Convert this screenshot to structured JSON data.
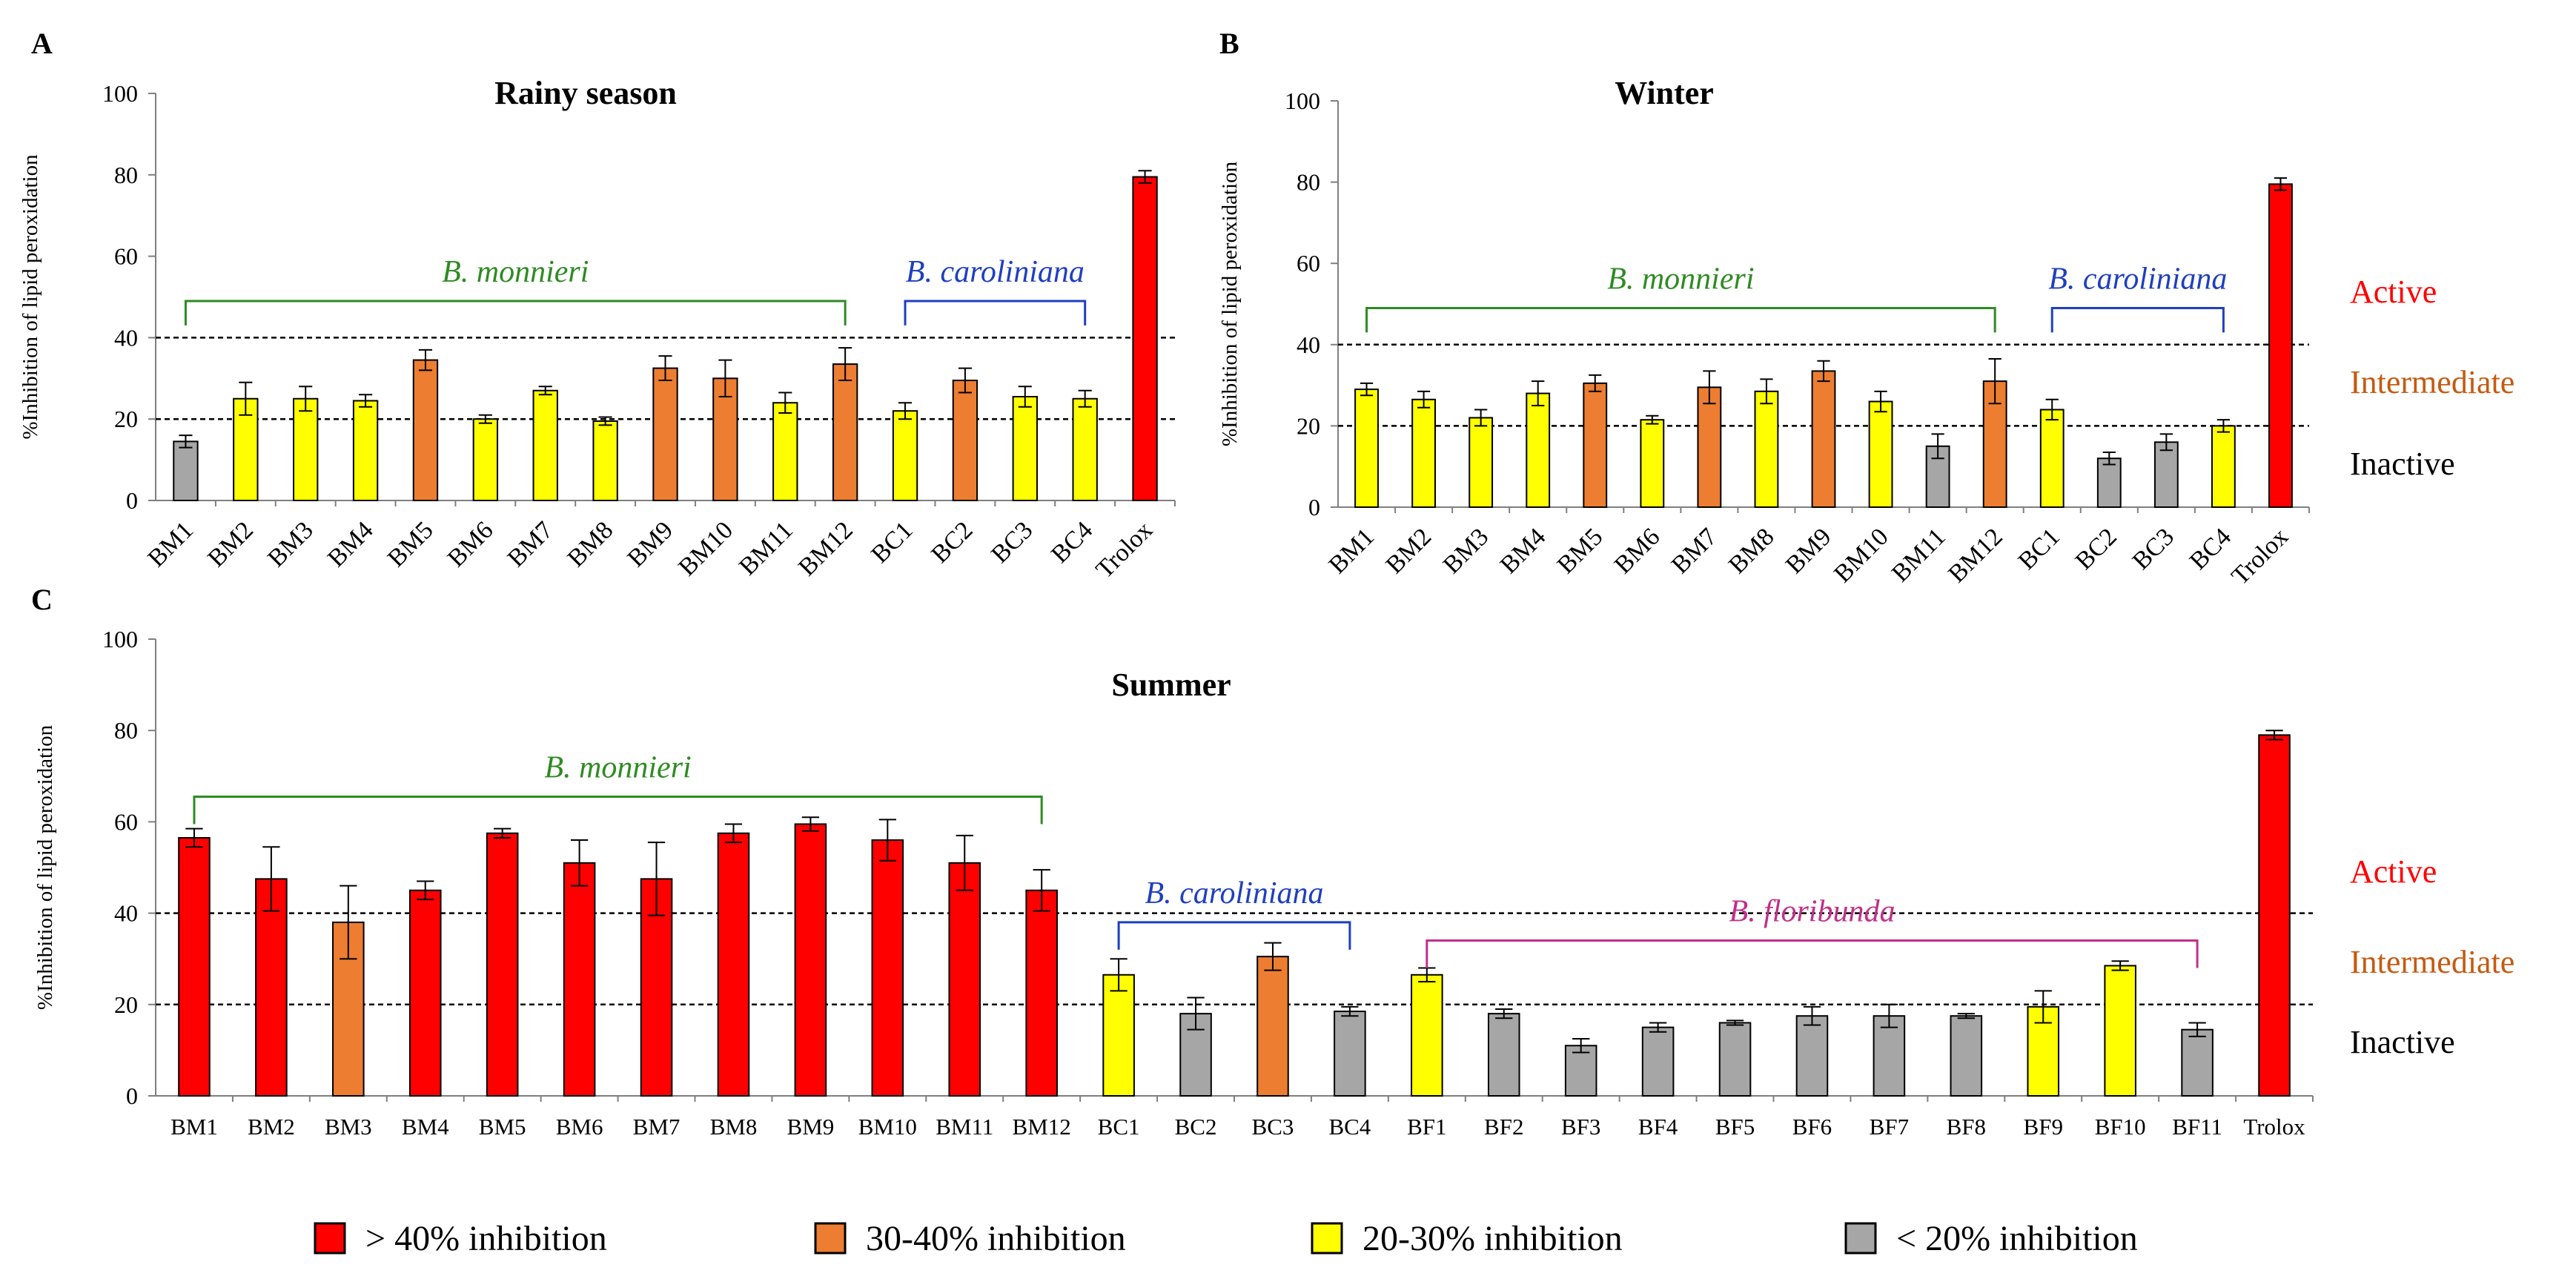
{
  "figure": {
    "colors": {
      "red": "#ff0000",
      "orange": "#ed7d31",
      "yellow": "#ffff00",
      "gray": "#a6a6a6",
      "monnieri_bracket": "#2e8b22",
      "caroliniana_bracket": "#1f3fbf",
      "floribunda_bracket": "#c0308a",
      "active_text": "#ff0000",
      "intermediate_text": "#c55a11",
      "inactive_text": "#000000"
    },
    "legend": [
      {
        "label": "> 40% inhibition",
        "color": "red"
      },
      {
        "label": "30-40% inhibition",
        "color": "orange"
      },
      {
        "label": "20-30% inhibition",
        "color": "yellow"
      },
      {
        "label": "< 20% inhibition",
        "color": "gray"
      }
    ]
  },
  "chart_data": [
    {
      "panel": "A",
      "type": "bar",
      "title": "Rainy season",
      "ylabel": "%Inhibition of lipid peroxidation",
      "ylim": [
        0,
        100
      ],
      "yticks": [
        0,
        20,
        40,
        60,
        80,
        100
      ],
      "thresholds": [
        20,
        40
      ],
      "categories": [
        "BM1",
        "BM2",
        "BM3",
        "BM4",
        "BM5",
        "BM6",
        "BM7",
        "BM8",
        "BM9",
        "BM10",
        "BM11",
        "BM12",
        "BC1",
        "BC2",
        "BC3",
        "BC4",
        "Trolox"
      ],
      "values": [
        14.5,
        25,
        25,
        24.5,
        34.5,
        20,
        27,
        19.5,
        32.5,
        30,
        24,
        33.5,
        22,
        29.5,
        25.5,
        25,
        79.5
      ],
      "errors": [
        1.5,
        4,
        3,
        1.5,
        2.5,
        1,
        1,
        1,
        3,
        4.5,
        2.5,
        4,
        2,
        3,
        2.5,
        2,
        1.5
      ],
      "colors": [
        "gray",
        "yellow",
        "yellow",
        "yellow",
        "orange",
        "yellow",
        "yellow",
        "yellow",
        "orange",
        "orange",
        "yellow",
        "orange",
        "yellow",
        "orange",
        "yellow",
        "yellow",
        "red"
      ],
      "groups": [
        {
          "label": "B. monnieri",
          "from": 0,
          "to": 11,
          "color": "monnieri_bracket"
        },
        {
          "label": "B. caroliniana",
          "from": 12,
          "to": 15,
          "color": "caroliniana_bracket"
        }
      ],
      "side_labels": []
    },
    {
      "panel": "B",
      "type": "bar",
      "title": "Winter",
      "ylabel": "%Inhibition of lipid peroxidation",
      "ylim": [
        0,
        100
      ],
      "yticks": [
        0,
        20,
        40,
        60,
        80,
        100
      ],
      "thresholds": [
        20,
        40
      ],
      "categories": [
        "BM1",
        "BM2",
        "BM3",
        "BM4",
        "BM5",
        "BM6",
        "BM7",
        "BM8",
        "BM9",
        "BM10",
        "BM11",
        "BM12",
        "BC1",
        "BC2",
        "BC3",
        "BC4",
        "Trolox"
      ],
      "values": [
        29,
        26.5,
        22,
        28,
        30.5,
        21.5,
        29.5,
        28.5,
        33.5,
        26,
        15,
        31,
        24,
        12,
        16,
        20,
        79.5
      ],
      "errors": [
        1.5,
        2,
        2,
        3,
        2,
        1,
        4,
        3,
        2.5,
        2.5,
        3,
        5.5,
        2.5,
        1.5,
        2,
        1.5,
        1.5
      ],
      "colors": [
        "yellow",
        "yellow",
        "yellow",
        "yellow",
        "orange",
        "yellow",
        "orange",
        "yellow",
        "orange",
        "yellow",
        "gray",
        "orange",
        "yellow",
        "gray",
        "gray",
        "yellow",
        "red"
      ],
      "groups": [
        {
          "label": "B. monnieri",
          "from": 0,
          "to": 11,
          "color": "monnieri_bracket"
        },
        {
          "label": "B. caroliniana",
          "from": 12,
          "to": 15,
          "color": "caroliniana_bracket"
        }
      ],
      "side_labels": [
        {
          "label": "Active",
          "color": "active_text"
        },
        {
          "label": "Intermediate",
          "color": "intermediate_text"
        },
        {
          "label": "Inactive",
          "color": "inactive_text"
        }
      ]
    },
    {
      "panel": "C",
      "type": "bar",
      "title": "Summer",
      "ylabel": "%Inhibition of lipid peroxidation",
      "ylim": [
        0,
        100
      ],
      "yticks": [
        0,
        20,
        40,
        60,
        80,
        100
      ],
      "thresholds": [
        20,
        40
      ],
      "categories": [
        "BM1",
        "BM2",
        "BM3",
        "BM4",
        "BM5",
        "BM6",
        "BM7",
        "BM8",
        "BM9",
        "BM10",
        "BM11",
        "BM12",
        "BC1",
        "BC2",
        "BC3",
        "BC4",
        "BF1",
        "BF2",
        "BF3",
        "BF4",
        "BF5",
        "BF6",
        "BF7",
        "BF8",
        "BF9",
        "BF10",
        "BF11",
        "Trolox"
      ],
      "values": [
        56.5,
        47.5,
        38,
        45,
        57.5,
        51,
        47.5,
        57.5,
        59.5,
        56,
        51,
        45,
        26.5,
        18,
        30.5,
        18.5,
        26.5,
        18,
        11,
        15,
        16,
        17.5,
        17.5,
        17.5,
        19.5,
        28.5,
        14.5,
        79
      ],
      "errors": [
        2,
        7,
        8,
        2,
        1,
        5,
        8,
        2,
        1.5,
        4.5,
        6,
        4.5,
        3.5,
        3.5,
        3,
        1,
        1.5,
        1,
        1.5,
        1,
        0.5,
        2,
        2.5,
        0.5,
        3.5,
        1,
        1.5,
        1
      ],
      "colors": [
        "red",
        "red",
        "orange",
        "red",
        "red",
        "red",
        "red",
        "red",
        "red",
        "red",
        "red",
        "red",
        "yellow",
        "gray",
        "orange",
        "gray",
        "yellow",
        "gray",
        "gray",
        "gray",
        "gray",
        "gray",
        "gray",
        "gray",
        "yellow",
        "yellow",
        "gray",
        "red"
      ],
      "groups": [
        {
          "label": "B. monnieri",
          "from": 0,
          "to": 11,
          "color": "monnieri_bracket"
        },
        {
          "label": "B. caroliniana",
          "from": 12,
          "to": 15,
          "color": "caroliniana_bracket"
        },
        {
          "label": "B. floribunda",
          "from": 16,
          "to": 26,
          "color": "floribunda_bracket"
        }
      ],
      "side_labels": [
        {
          "label": "Active",
          "color": "active_text"
        },
        {
          "label": "Intermediate",
          "color": "intermediate_text"
        },
        {
          "label": "Inactive",
          "color": "inactive_text"
        }
      ]
    }
  ]
}
